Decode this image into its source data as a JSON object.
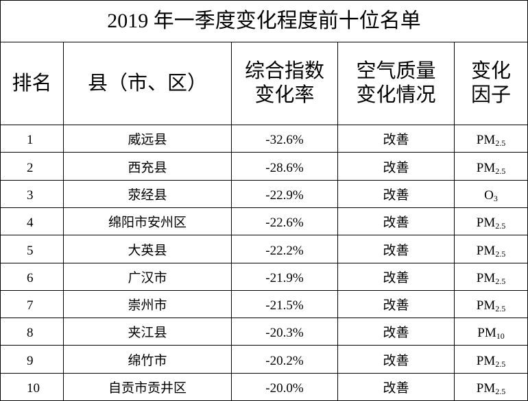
{
  "title": "2019 年一季度变化程度前十位名单",
  "table": {
    "header": [
      [
        "排名"
      ],
      [
        "县（市、区）"
      ],
      [
        "综合指数",
        "变化率"
      ],
      [
        "空气质量",
        "变化情况"
      ],
      [
        "变化",
        "因子"
      ]
    ],
    "rows": [
      [
        "1",
        "威远县",
        "-32.6%",
        "改善",
        {
          "main": "PM",
          "sub": "2.5"
        }
      ],
      [
        "2",
        "西充县",
        "-28.6%",
        "改善",
        {
          "main": "PM",
          "sub": "2.5"
        }
      ],
      [
        "3",
        "荥经县",
        "-22.9%",
        "改善",
        {
          "main": "O",
          "sub": "3"
        }
      ],
      [
        "4",
        "绵阳市安州区",
        "-22.6%",
        "改善",
        {
          "main": "PM",
          "sub": "2.5"
        }
      ],
      [
        "5",
        "大英县",
        "-22.2%",
        "改善",
        {
          "main": "PM",
          "sub": "2.5"
        }
      ],
      [
        "6",
        "广汉市",
        "-21.9%",
        "改善",
        {
          "main": "PM",
          "sub": "2.5"
        }
      ],
      [
        "7",
        "崇州市",
        "-21.5%",
        "改善",
        {
          "main": "PM",
          "sub": "2.5"
        }
      ],
      [
        "8",
        "夹江县",
        "-20.3%",
        "改善",
        {
          "main": "PM",
          "sub": "10"
        }
      ],
      [
        "9",
        "绵竹市",
        "-20.2%",
        "改善",
        {
          "main": "PM",
          "sub": "2.5"
        }
      ],
      [
        "10",
        "自贡市贡井区",
        "-20.0%",
        "改善",
        {
          "main": "PM",
          "sub": "2.5"
        }
      ]
    ]
  }
}
